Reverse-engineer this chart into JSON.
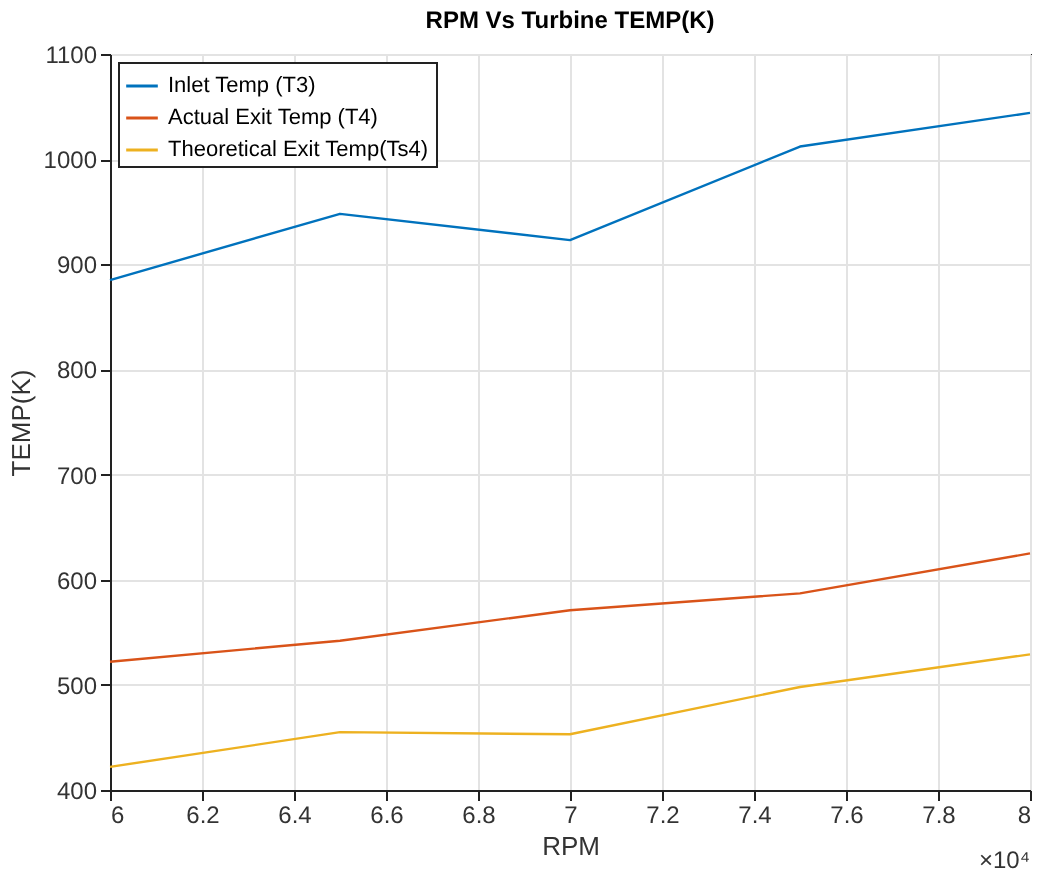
{
  "chart_data": {
    "type": "line",
    "title": "RPM Vs Turbine TEMP(K)",
    "xlabel": "RPM",
    "ylabel": "TEMP(K)",
    "x": [
      6,
      6.5,
      7,
      7.5,
      8
    ],
    "series": [
      {
        "name": "Inlet Temp (T3)",
        "color": "#0072bd",
        "values": [
          885,
          948,
          923,
          1012,
          1044
        ]
      },
      {
        "name": "Actual Exit Temp (T4)",
        "color": "#d95319",
        "values": [
          522,
          542,
          571,
          587,
          625
        ]
      },
      {
        "name": "Theoretical Exit Temp(Ts4)",
        "color": "#edb120",
        "values": [
          422,
          455,
          453,
          498,
          529
        ]
      }
    ],
    "xlim": [
      6,
      8
    ],
    "xticks": [
      6,
      6.2,
      6.4,
      6.6,
      6.8,
      7,
      7.2,
      7.4,
      7.6,
      7.8,
      8
    ],
    "ylim": [
      400,
      1100
    ],
    "yticks": [
      400,
      500,
      600,
      700,
      800,
      900,
      1000,
      1100
    ],
    "annotations": [
      "×10⁴"
    ],
    "grid": true,
    "legend": "top left",
    "marker": "none",
    "line_style": "solid"
  }
}
